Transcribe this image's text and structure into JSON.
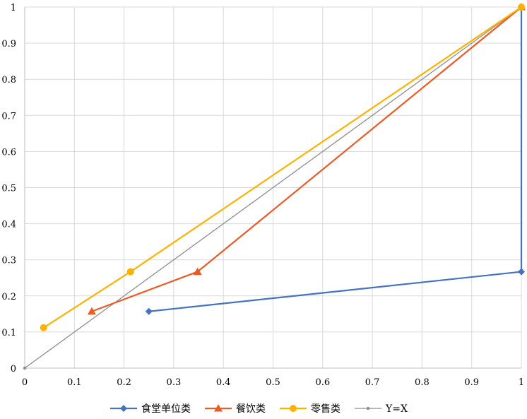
{
  "chart_data": {
    "type": "scatter",
    "title": "",
    "xlabel": "",
    "ylabel": "",
    "xlim": [
      0,
      1
    ],
    "ylim": [
      0,
      1
    ],
    "x_ticks": [
      "0",
      "0.1",
      "0.2",
      "0.3",
      "0.4",
      "0.5",
      "0.6",
      "0.7",
      "0.8",
      "0.9",
      "1"
    ],
    "y_ticks": [
      "0",
      "0.1",
      "0.2",
      "0.3",
      "0.4",
      "0.5",
      "0.6",
      "0.7",
      "0.8",
      "0.9",
      "1"
    ],
    "grid": true,
    "legend_position": "bottom",
    "series": [
      {
        "name": "食堂单位类",
        "color": "#4472C4",
        "marker": "diamond",
        "points": [
          [
            0.25,
            0.157
          ],
          [
            1.0,
            0.267
          ],
          [
            1.0,
            1.0
          ]
        ]
      },
      {
        "name": "餐饮类",
        "color": "#ED5A24",
        "marker": "triangle",
        "points": [
          [
            0.135,
            0.157
          ],
          [
            0.348,
            0.267
          ],
          [
            1.0,
            1.0
          ]
        ]
      },
      {
        "name": "零售类",
        "color": "#FFB100",
        "marker": "circle",
        "points": [
          [
            0.038,
            0.112
          ],
          [
            0.213,
            0.267
          ],
          [
            1.0,
            1.0
          ]
        ]
      },
      {
        "name": "Y=X",
        "color": "#8C8C8C",
        "marker": "small-dot",
        "points": [
          [
            0,
            0
          ],
          [
            1,
            1
          ]
        ]
      }
    ]
  }
}
